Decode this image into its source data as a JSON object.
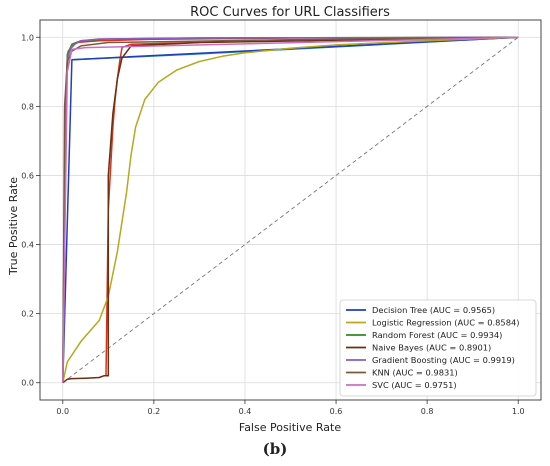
{
  "caption": "(b)",
  "chart_data": {
    "type": "line",
    "title": "ROC Curves for URL Classifiers",
    "xlabel": "False Positive Rate",
    "ylabel": "True Positive Rate",
    "xlim": [
      -0.05,
      1.05
    ],
    "ylim": [
      -0.05,
      1.05
    ],
    "xticks": [
      "0.0",
      "0.2",
      "0.4",
      "0.6",
      "0.8",
      "1.0"
    ],
    "yticks": [
      "0.0",
      "0.2",
      "0.4",
      "0.6",
      "0.8",
      "1.0"
    ],
    "grid": true,
    "legend_position": "lower-right",
    "diagonal": {
      "x": [
        0,
        1
      ],
      "y": [
        0,
        1
      ],
      "style": "dashed",
      "color": "#777777"
    },
    "series": [
      {
        "name": "Decision Tree (AUC = 0.9565)",
        "color": "#1f3fbf",
        "x": [
          0,
          0.02,
          1
        ],
        "y": [
          0,
          0.935,
          1
        ]
      },
      {
        "name": "Logistic Regression (AUC = 0.8584)",
        "color": "#b8a81a",
        "x": [
          0,
          0.01,
          0.04,
          0.08,
          0.1,
          0.12,
          0.14,
          0.15,
          0.16,
          0.18,
          0.21,
          0.25,
          0.3,
          0.35,
          0.4,
          0.5,
          0.6,
          0.8,
          1.0
        ],
        "y": [
          0,
          0.06,
          0.12,
          0.18,
          0.25,
          0.38,
          0.55,
          0.66,
          0.74,
          0.82,
          0.87,
          0.905,
          0.93,
          0.945,
          0.955,
          0.968,
          0.978,
          0.99,
          1.0
        ]
      },
      {
        "name": "Random Forest (AUC = 0.9934)",
        "color": "#2e8b1e",
        "x": [
          0,
          0.005,
          0.01,
          0.02,
          0.04,
          0.1,
          0.3,
          1.0
        ],
        "y": [
          0,
          0.75,
          0.95,
          0.98,
          0.99,
          0.995,
          0.998,
          1.0
        ]
      },
      {
        "name": "Naive Bayes (AUC = 0.8901)",
        "color": "#6b2e0e",
        "x": [
          0,
          0.01,
          0.02,
          0.05,
          0.08,
          0.09,
          0.1,
          0.1,
          0.11,
          0.12,
          0.13,
          0.15,
          0.3,
          1.0
        ],
        "y": [
          0,
          0.01,
          0.012,
          0.013,
          0.015,
          0.02,
          0.02,
          0.6,
          0.78,
          0.88,
          0.94,
          0.975,
          0.985,
          1.0
        ]
      },
      {
        "name": "Gradient Boosting (AUC = 0.9919)",
        "color": "#8a5cc4",
        "x": [
          0,
          0.005,
          0.01,
          0.02,
          0.04,
          0.08,
          0.3,
          1.0
        ],
        "y": [
          0,
          0.7,
          0.94,
          0.975,
          0.99,
          0.995,
          0.998,
          1.0
        ]
      },
      {
        "name": "KNN (AUC = 0.9831)",
        "color": "#7a5a3a",
        "x": [
          0,
          0.004,
          0.01,
          0.02,
          0.04,
          0.1,
          0.5,
          1.0
        ],
        "y": [
          0,
          0.8,
          0.93,
          0.96,
          0.975,
          0.985,
          0.993,
          1.0
        ]
      },
      {
        "name": "SVC (AUC = 0.9751)",
        "color": "#cc6ec0",
        "x": [
          0,
          0.01,
          0.02,
          0.05,
          1.0
        ],
        "y": [
          0,
          0.9,
          0.965,
          0.97,
          1.0
        ]
      }
    ],
    "overlay_series": [
      {
        "color": "#d8321e",
        "x": [
          0,
          0.006,
          0.012,
          0.03,
          0.08,
          0.2,
          0.5,
          1.0
        ],
        "y": [
          0,
          0.8,
          0.96,
          0.985,
          0.99,
          0.994,
          0.998,
          1.0
        ]
      },
      {
        "color": "#d8321e",
        "x": [
          0.095,
          0.1,
          0.105,
          0.11,
          0.115,
          0.12,
          0.125,
          0.13,
          0.15,
          0.3
        ],
        "y": [
          0.02,
          0.5,
          0.62,
          0.74,
          0.82,
          0.88,
          0.93,
          0.97,
          0.98,
          0.985
        ]
      },
      {
        "color": "#1f8aa8",
        "x": [
          0.02,
          0.3,
          0.6,
          1.0
        ],
        "y": [
          0.935,
          0.952,
          0.972,
          1.0
        ]
      }
    ]
  }
}
